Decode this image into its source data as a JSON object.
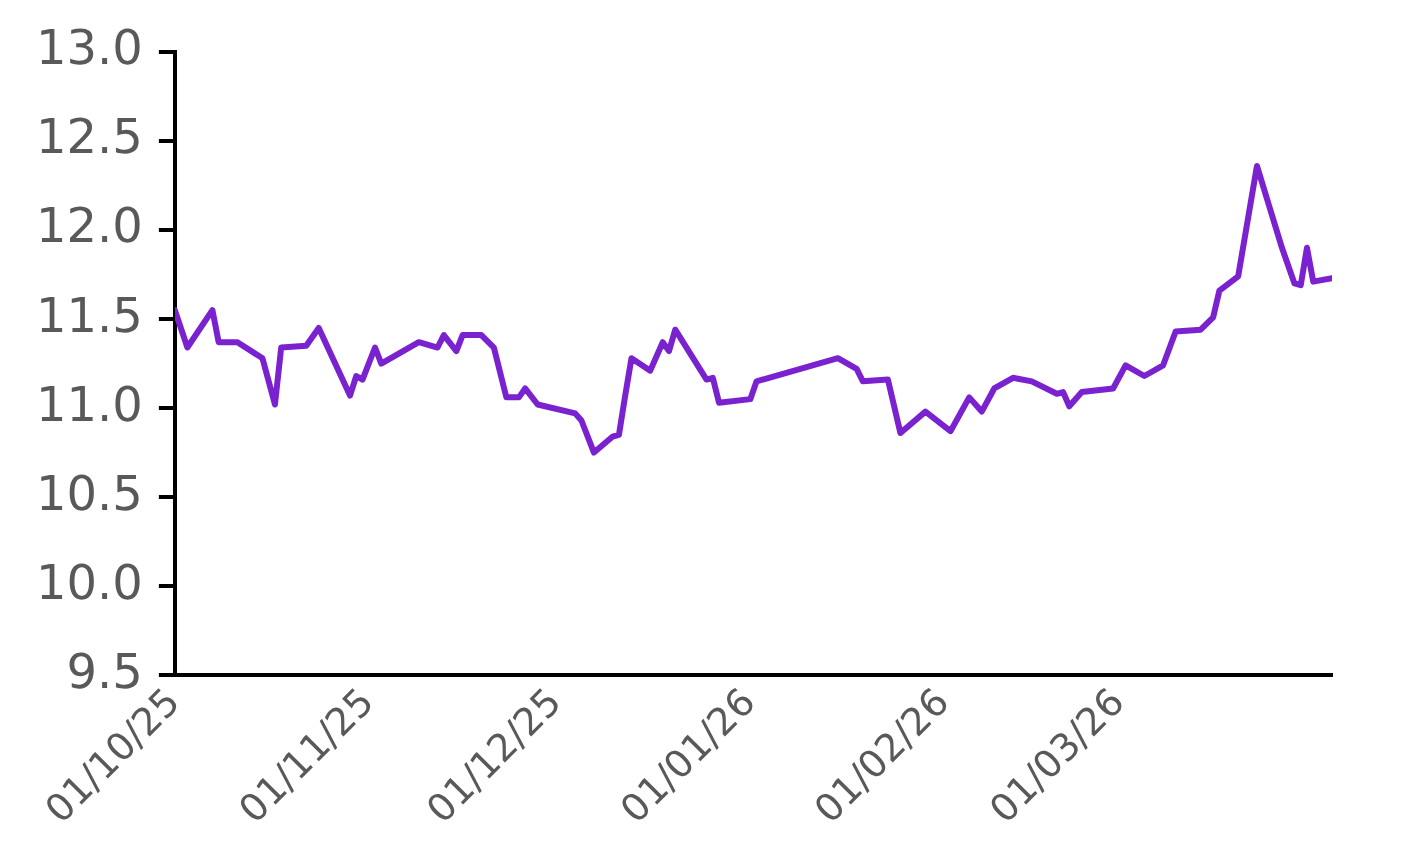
{
  "chart_data": {
    "type": "line",
    "x": [
      "2025-10-01",
      "2025-10-03",
      "2025-10-07",
      "2025-10-08",
      "2025-10-11",
      "2025-10-15",
      "2025-10-17",
      "2025-10-18",
      "2025-10-22",
      "2025-10-24",
      "2025-10-29",
      "2025-10-30",
      "2025-10-31",
      "2025-11-02",
      "2025-11-03",
      "2025-11-09",
      "2025-11-12",
      "2025-11-13",
      "2025-11-15",
      "2025-11-16",
      "2025-11-19",
      "2025-11-21",
      "2025-11-23",
      "2025-11-25",
      "2025-11-26",
      "2025-11-28",
      "2025-12-04",
      "2025-12-05",
      "2025-12-07",
      "2025-12-10",
      "2025-12-11",
      "2025-12-12",
      "2025-12-13",
      "2025-12-16",
      "2025-12-18",
      "2025-12-19",
      "2025-12-20",
      "2025-12-25",
      "2025-12-26",
      "2025-12-27",
      "2026-01-01",
      "2026-01-02",
      "2026-01-15",
      "2026-01-18",
      "2026-01-19",
      "2026-01-23",
      "2026-01-25",
      "2026-01-29",
      "2026-02-02",
      "2026-02-05",
      "2026-02-07",
      "2026-02-09",
      "2026-02-12",
      "2026-02-15",
      "2026-02-19",
      "2026-02-20",
      "2026-02-21",
      "2026-02-23",
      "2026-02-28",
      "2026-03-02",
      "2026-03-05",
      "2026-03-08",
      "2026-03-10",
      "2026-03-14",
      "2026-03-16",
      "2026-03-17",
      "2026-03-20",
      "2026-03-23",
      "2026-03-27",
      "2026-03-29",
      "2026-03-30",
      "2026-03-31",
      "2026-04-01",
      "2026-04-04"
    ],
    "series": [
      {
        "color": "#7b22d0",
        "values": [
          11.55,
          11.34,
          11.55,
          11.37,
          11.37,
          11.28,
          11.02,
          11.34,
          11.35,
          11.45,
          11.07,
          11.18,
          11.16,
          11.34,
          11.25,
          11.37,
          11.34,
          11.41,
          11.32,
          11.41,
          11.41,
          11.34,
          11.06,
          11.06,
          11.11,
          11.02,
          10.97,
          10.93,
          10.75,
          10.84,
          10.85,
          11.07,
          11.28,
          11.21,
          11.37,
          11.32,
          11.44,
          11.16,
          11.17,
          11.03,
          11.05,
          11.15,
          11.28,
          11.22,
          11.15,
          11.16,
          10.86,
          10.98,
          10.87,
          11.06,
          10.98,
          11.11,
          11.17,
          11.15,
          11.08,
          11.09,
          11.01,
          11.09,
          11.11,
          11.24,
          11.18,
          11.24,
          11.43,
          11.44,
          11.51,
          11.66,
          11.74,
          12.36,
          11.9,
          11.7,
          11.69,
          11.9,
          11.71,
          11.73
        ]
      }
    ],
    "xlim": [
      "2025-10-01",
      "2026-04-04"
    ],
    "xticks": [
      {
        "value": "2025-10-01",
        "label": "01/10/25"
      },
      {
        "value": "2025-11-01",
        "label": "01/11/25"
      },
      {
        "value": "2025-12-01",
        "label": "01/12/25"
      },
      {
        "value": "2026-01-01",
        "label": "01/01/26"
      },
      {
        "value": "2026-02-01",
        "label": "01/02/26"
      },
      {
        "value": "2026-03-01",
        "label": "01/03/26"
      }
    ],
    "ylim": [
      9.5,
      13.0
    ],
    "yticks": [
      {
        "value": 9.5,
        "label": "9.5"
      },
      {
        "value": 10,
        "label": "10.0"
      },
      {
        "value": 10.5,
        "label": "10.5"
      },
      {
        "value": 11,
        "label": "11.0"
      },
      {
        "value": 11.5,
        "label": "11.5"
      },
      {
        "value": 12,
        "label": "12.0"
      },
      {
        "value": 12.5,
        "label": "12.5"
      },
      {
        "value": 13,
        "label": "13.0"
      }
    ],
    "grid": false,
    "legend": false,
    "marker": "none",
    "line_style": "solid"
  }
}
